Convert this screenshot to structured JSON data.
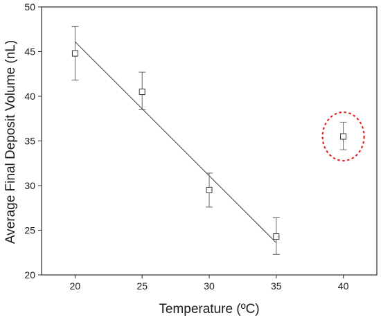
{
  "chart_data": {
    "type": "scatter",
    "xlabel": "Temperature (ºC)",
    "ylabel": "Average Final Deposit Volume (nL)",
    "xlim": [
      17.5,
      42.5
    ],
    "ylim": [
      20,
      50
    ],
    "x_ticks": [
      20,
      25,
      30,
      35,
      40
    ],
    "y_ticks": [
      20,
      25,
      30,
      35,
      40,
      45,
      50
    ],
    "grid": false,
    "series": [
      {
        "marker": "open-square",
        "color": "#333333",
        "points": [
          {
            "x": 20,
            "y": 44.8,
            "err_low": 41.8,
            "err_high": 47.8
          },
          {
            "x": 25,
            "y": 40.5,
            "err_low": 38.5,
            "err_high": 42.7
          },
          {
            "x": 30,
            "y": 29.5,
            "err_low": 27.6,
            "err_high": 31.4
          },
          {
            "x": 35,
            "y": 24.3,
            "err_low": 22.3,
            "err_high": 26.4
          },
          {
            "x": 40,
            "y": 35.5,
            "err_low": 34.0,
            "err_high": 37.1
          }
        ]
      }
    ],
    "fit_line": {
      "color": "#333333",
      "points": [
        {
          "x": 20,
          "y": 46.1
        },
        {
          "x": 35,
          "y": 23.6
        }
      ]
    },
    "highlight": {
      "shape": "dashed-ellipse",
      "color": "#e3261f",
      "target_x": 40,
      "target_y": 35.5
    }
  }
}
